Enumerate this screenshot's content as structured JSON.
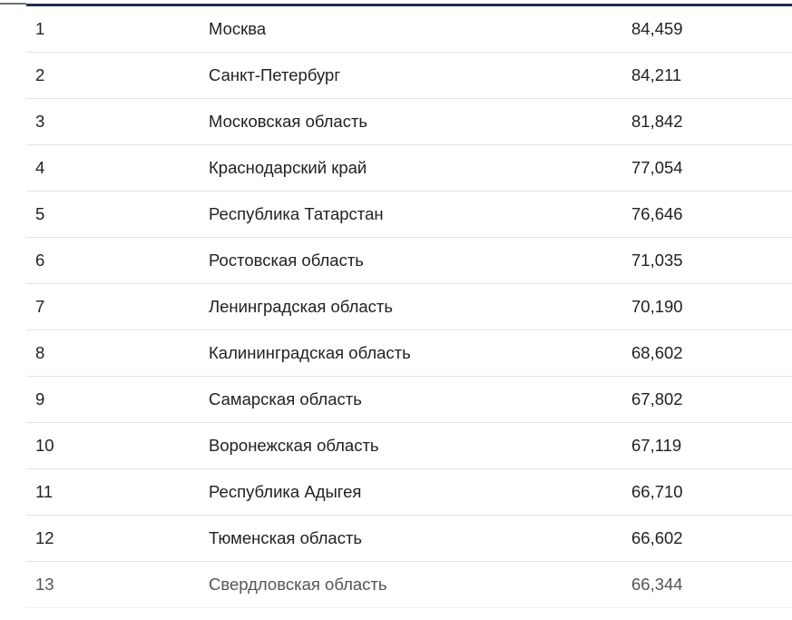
{
  "rows": [
    {
      "rank": "1",
      "region": "Москва",
      "value": "84,459"
    },
    {
      "rank": "2",
      "region": "Санкт-Петербург",
      "value": "84,211"
    },
    {
      "rank": "3",
      "region": "Московская область",
      "value": "81,842"
    },
    {
      "rank": "4",
      "region": "Краснодарский край",
      "value": "77,054"
    },
    {
      "rank": "5",
      "region": "Республика Татарстан",
      "value": "76,646"
    },
    {
      "rank": "6",
      "region": "Ростовская область",
      "value": "71,035"
    },
    {
      "rank": "7",
      "region": "Ленинградская область",
      "value": "70,190"
    },
    {
      "rank": "8",
      "region": "Калининградская область",
      "value": "68,602"
    },
    {
      "rank": "9",
      "region": "Самарская область",
      "value": "67,802"
    },
    {
      "rank": "10",
      "region": "Воронежская область",
      "value": "67,119"
    },
    {
      "rank": "11",
      "region": "Республика Адыгея",
      "value": "66,710"
    },
    {
      "rank": "12",
      "region": "Тюменская область",
      "value": "66,602"
    },
    {
      "rank": "13",
      "region": "Свердловская область",
      "value": "66,344"
    }
  ],
  "colors": {
    "header_rule": "#1f2d4d",
    "row_divider": "#e4e4e4"
  }
}
